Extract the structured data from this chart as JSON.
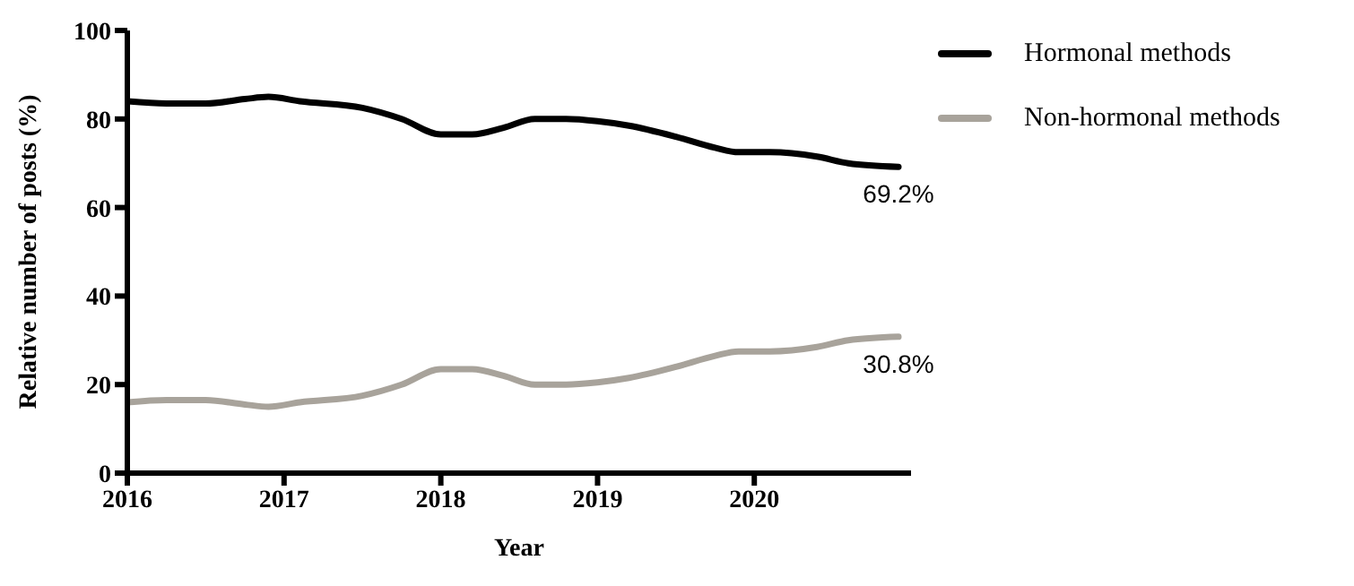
{
  "chart_data": {
    "type": "line",
    "xlabel": "Year",
    "ylabel": "Relative number of posts (%)",
    "xlim": [
      2016,
      2021
    ],
    "xticks": [
      2016,
      2017,
      2018,
      2019,
      2020
    ],
    "ylim": [
      0,
      100
    ],
    "yticks": [
      0,
      20,
      40,
      60,
      80,
      100
    ],
    "legend": "top right",
    "marker": "none",
    "line_style": "solid",
    "x": [
      2016,
      2016.25,
      2016.5,
      2016.75,
      2016.9,
      2017.1,
      2017.5,
      2017.75,
      2018,
      2018.2,
      2018.4,
      2018.6,
      2018.8,
      2019,
      2019.2,
      2019.5,
      2019.75,
      2019.9,
      2020.1,
      2020.4,
      2020.6,
      2020.92
    ],
    "series": [
      {
        "name": "Hormonal methods",
        "color": "#000000",
        "values": [
          84,
          83.5,
          83.5,
          84.5,
          85,
          84,
          82.5,
          80,
          76.5,
          76.5,
          78,
          80,
          80,
          79.5,
          78.5,
          76,
          73.5,
          72.5,
          72.5,
          71.5,
          70,
          69.2
        ]
      },
      {
        "name": "Non-hormonal methods",
        "color": "#a8a39b",
        "values": [
          16,
          16.5,
          16.5,
          15.5,
          15,
          16,
          17.5,
          20,
          23.5,
          23.5,
          22,
          20,
          20,
          20.5,
          21.5,
          24,
          26.5,
          27.5,
          27.5,
          28.5,
          30,
          30.8
        ]
      }
    ],
    "annotations": [
      {
        "text": "69.2%",
        "x": 2020.92,
        "y": 69.2
      },
      {
        "text": "30.8%",
        "x": 2020.92,
        "y": 30.8
      }
    ]
  }
}
